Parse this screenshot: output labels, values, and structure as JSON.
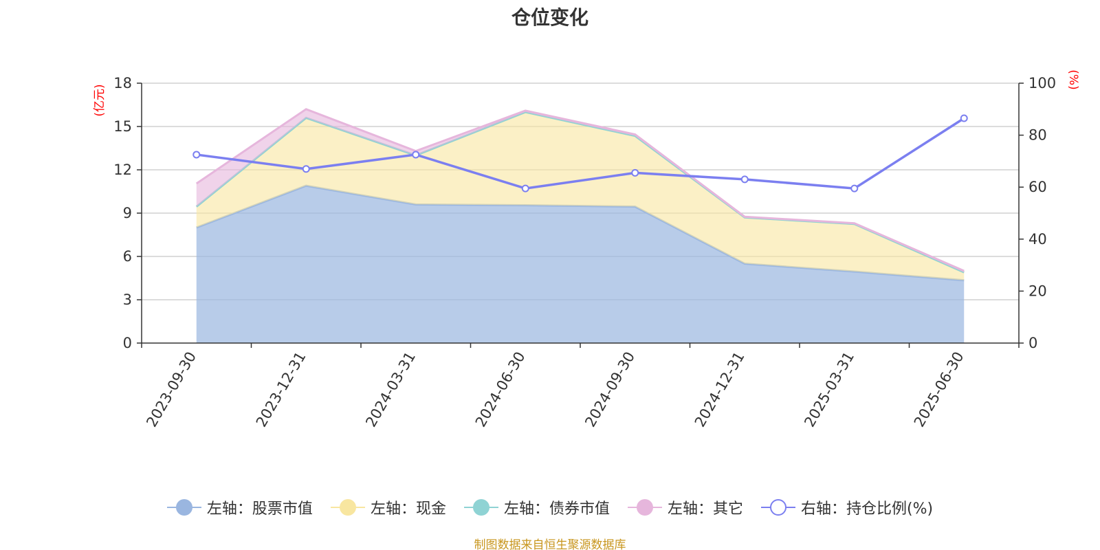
{
  "chart_data": {
    "type": "area",
    "title": "仓位变化",
    "y_left_unit": "(亿元)",
    "y_right_unit": "(%)",
    "categories": [
      "2023-09-30",
      "2023-12-31",
      "2024-03-31",
      "2024-06-30",
      "2024-09-30",
      "2024-12-31",
      "2025-03-31",
      "2025-06-30"
    ],
    "y_left_ticks": [
      0,
      3,
      6,
      9,
      12,
      15,
      18
    ],
    "y_left_range": [
      0,
      18
    ],
    "y_right_ticks": [
      0,
      20,
      40,
      60,
      80,
      100
    ],
    "y_right_range": [
      0,
      100
    ],
    "grid": true,
    "legend_position": "bottom",
    "series": [
      {
        "name": "左轴：股票市值",
        "axis": "left",
        "kind": "stacked-area",
        "color": "#9ab6e0",
        "values": [
          8.0,
          10.9,
          9.6,
          9.55,
          9.45,
          5.5,
          4.95,
          4.35
        ]
      },
      {
        "name": "左轴：现金",
        "axis": "left",
        "kind": "stacked-area",
        "color": "#f8e6a0",
        "values": [
          1.45,
          4.7,
          3.4,
          6.45,
          4.9,
          3.2,
          3.3,
          0.55
        ]
      },
      {
        "name": "左轴：债券市值",
        "axis": "left",
        "kind": "stacked-area",
        "color": "#8fd3d4",
        "values": [
          0,
          0,
          0,
          0,
          0,
          0,
          0,
          0
        ]
      },
      {
        "name": "左轴：其它",
        "axis": "left",
        "kind": "stacked-area",
        "color": "#e6b6dc",
        "values": [
          1.6,
          0.6,
          0.3,
          0.1,
          0.1,
          0.05,
          0.05,
          0.1
        ]
      },
      {
        "name": "右轴：持仓比例(%)",
        "axis": "right",
        "kind": "line",
        "color": "#7b7ff0",
        "values": [
          72.5,
          67.0,
          72.5,
          59.5,
          65.5,
          63.0,
          59.5,
          86.5
        ]
      }
    ]
  },
  "source_note": "制图数据来自恒生聚源数据库"
}
